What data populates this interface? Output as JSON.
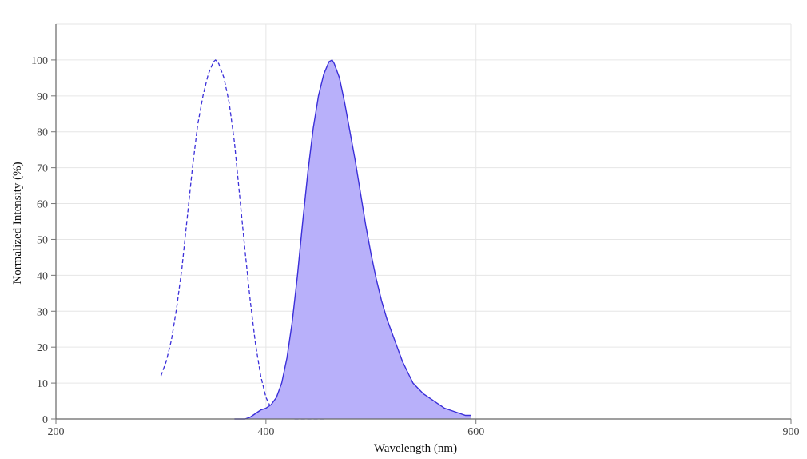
{
  "chart_data": {
    "type": "area",
    "title": "",
    "xlabel": "Wavelength (nm)",
    "ylabel": "Normalized Intensity (%)",
    "xlim": [
      200,
      900
    ],
    "ylim": [
      0,
      110
    ],
    "x_ticks": [
      200,
      400,
      600,
      900
    ],
    "y_ticks": [
      0,
      10,
      20,
      30,
      40,
      50,
      60,
      70,
      80,
      90,
      100
    ],
    "grid": true,
    "series": [
      {
        "role": "excitation",
        "style": "dashed-line",
        "color": "#3b2fd9",
        "points": [
          [
            300,
            12
          ],
          [
            305,
            16
          ],
          [
            310,
            22
          ],
          [
            315,
            31
          ],
          [
            320,
            42
          ],
          [
            325,
            56
          ],
          [
            330,
            70
          ],
          [
            335,
            82
          ],
          [
            340,
            90
          ],
          [
            345,
            96
          ],
          [
            350,
            99.5
          ],
          [
            352,
            100
          ],
          [
            355,
            99
          ],
          [
            360,
            95
          ],
          [
            365,
            88
          ],
          [
            370,
            77
          ],
          [
            375,
            62
          ],
          [
            380,
            47
          ],
          [
            385,
            33
          ],
          [
            390,
            21
          ],
          [
            395,
            12
          ],
          [
            400,
            6
          ],
          [
            405,
            3
          ],
          [
            410,
            1.5
          ],
          [
            415,
            0.7
          ],
          [
            420,
            0.3
          ],
          [
            425,
            0
          ],
          [
            430,
            0
          ],
          [
            440,
            0
          ],
          [
            450,
            0
          ],
          [
            455,
            0
          ]
        ]
      },
      {
        "role": "emission",
        "style": "filled-area",
        "color": "#3b2fd9",
        "fill": "#b8b0fa",
        "points": [
          [
            370,
            0
          ],
          [
            380,
            0
          ],
          [
            385,
            0.5
          ],
          [
            390,
            1.5
          ],
          [
            395,
            2.5
          ],
          [
            400,
            3
          ],
          [
            405,
            4
          ],
          [
            410,
            6
          ],
          [
            415,
            10
          ],
          [
            420,
            17
          ],
          [
            425,
            27
          ],
          [
            430,
            40
          ],
          [
            435,
            55
          ],
          [
            440,
            69
          ],
          [
            445,
            81
          ],
          [
            450,
            90
          ],
          [
            455,
            96
          ],
          [
            460,
            99.5
          ],
          [
            463,
            100
          ],
          [
            465,
            99
          ],
          [
            470,
            95
          ],
          [
            475,
            88
          ],
          [
            480,
            80
          ],
          [
            485,
            72
          ],
          [
            490,
            63
          ],
          [
            495,
            54
          ],
          [
            500,
            46
          ],
          [
            505,
            39
          ],
          [
            510,
            33
          ],
          [
            515,
            28
          ],
          [
            520,
            24
          ],
          [
            525,
            20
          ],
          [
            530,
            16
          ],
          [
            535,
            13
          ],
          [
            540,
            10
          ],
          [
            545,
            8.5
          ],
          [
            550,
            7
          ],
          [
            555,
            6
          ],
          [
            560,
            5
          ],
          [
            565,
            4
          ],
          [
            570,
            3
          ],
          [
            575,
            2.5
          ],
          [
            580,
            2
          ],
          [
            585,
            1.5
          ],
          [
            590,
            1
          ],
          [
            595,
            1
          ]
        ]
      }
    ]
  }
}
